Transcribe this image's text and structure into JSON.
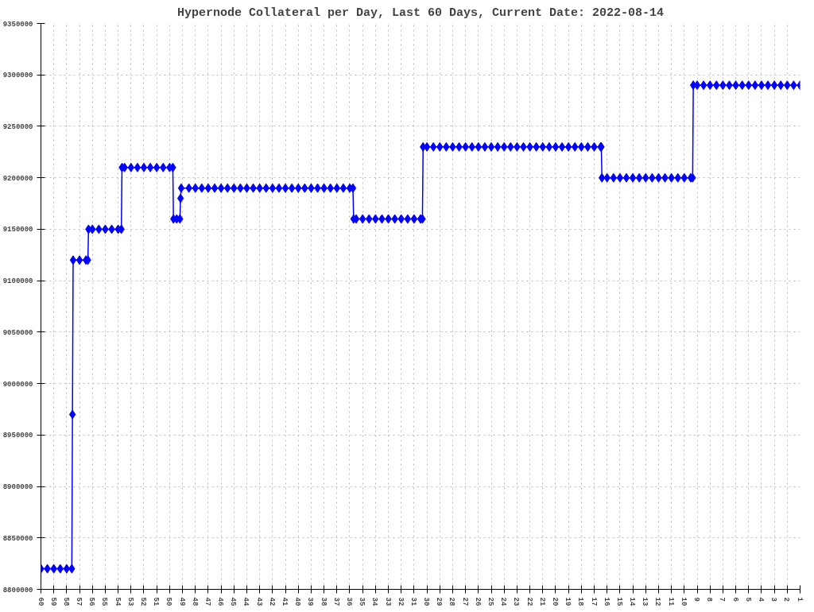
{
  "chart_data": {
    "type": "line",
    "title": "Hypernode Collateral per Day, Last 60 Days, Current Date: 2022-08-14",
    "x": [
      60,
      59.5,
      59,
      58.5,
      58,
      57.6,
      57.55,
      57.5,
      57,
      56.5,
      56.35,
      56.3,
      56,
      55.5,
      55,
      54.5,
      54,
      53.75,
      53.7,
      53.5,
      53,
      52.5,
      52,
      51.5,
      51,
      50.5,
      50,
      49.75,
      49.7,
      49.45,
      49.2,
      49.15,
      49.1,
      48.5,
      48,
      47.5,
      47,
      46.5,
      46,
      45.5,
      45,
      44.5,
      44,
      43.5,
      43,
      42.5,
      42,
      41.5,
      41,
      40.5,
      40,
      39.5,
      39,
      38.5,
      38,
      37.5,
      37,
      36.5,
      36,
      35.75,
      35.7,
      35.5,
      35,
      34.5,
      34,
      33.5,
      33,
      32.5,
      32,
      31.5,
      31,
      30.5,
      30.35,
      30.3,
      30,
      29.5,
      29,
      28.5,
      28,
      27.5,
      27,
      26.5,
      26,
      25.5,
      25,
      24.5,
      24,
      23.5,
      23,
      22.5,
      22,
      21.5,
      21,
      20.5,
      20,
      19.5,
      19,
      18.5,
      18,
      17.5,
      17,
      16.5,
      16.45,
      16.4,
      16,
      15.5,
      15,
      14.5,
      14,
      13.5,
      13,
      12.5,
      12,
      11.5,
      11,
      10.5,
      10,
      9.5,
      9.35,
      9.3,
      9,
      8.5,
      8,
      7.5,
      7,
      6.5,
      6,
      5.5,
      5,
      4.5,
      4,
      3.5,
      3,
      2.5,
      2,
      1.5,
      1
    ],
    "series": [
      {
        "color": "#0000ff",
        "values": [
          8820000,
          8820000,
          8820000,
          8820000,
          8820000,
          8820000,
          8970000,
          9120000,
          9120000,
          9120000,
          9120000,
          9150000,
          9150000,
          9150000,
          9150000,
          9150000,
          9150000,
          9150000,
          9210000,
          9210000,
          9210000,
          9210000,
          9210000,
          9210000,
          9210000,
          9210000,
          9210000,
          9210000,
          9160000,
          9160000,
          9160000,
          9180000,
          9190000,
          9190000,
          9190000,
          9190000,
          9190000,
          9190000,
          9190000,
          9190000,
          9190000,
          9190000,
          9190000,
          9190000,
          9190000,
          9190000,
          9190000,
          9190000,
          9190000,
          9190000,
          9190000,
          9190000,
          9190000,
          9190000,
          9190000,
          9190000,
          9190000,
          9190000,
          9190000,
          9190000,
          9160000,
          9160000,
          9160000,
          9160000,
          9160000,
          9160000,
          9160000,
          9160000,
          9160000,
          9160000,
          9160000,
          9160000,
          9160000,
          9230000,
          9230000,
          9230000,
          9230000,
          9230000,
          9230000,
          9230000,
          9230000,
          9230000,
          9230000,
          9230000,
          9230000,
          9230000,
          9230000,
          9230000,
          9230000,
          9230000,
          9230000,
          9230000,
          9230000,
          9230000,
          9230000,
          9230000,
          9230000,
          9230000,
          9230000,
          9230000,
          9230000,
          9230000,
          9230000,
          9200000,
          9200000,
          9200000,
          9200000,
          9200000,
          9200000,
          9200000,
          9200000,
          9200000,
          9200000,
          9200000,
          9200000,
          9200000,
          9200000,
          9200000,
          9200000,
          9290000,
          9290000,
          9290000,
          9290000,
          9290000,
          9290000,
          9290000,
          9290000,
          9290000,
          9290000,
          9290000,
          9290000,
          9290000,
          9290000,
          9290000,
          9290000,
          9290000,
          9290000
        ]
      }
    ],
    "xlim": [
      60,
      1
    ],
    "xticks": [
      60,
      59,
      58,
      57,
      56,
      55,
      54,
      53,
      52,
      51,
      50,
      49,
      48,
      47,
      46,
      45,
      44,
      43,
      42,
      41,
      40,
      39,
      38,
      37,
      36,
      35,
      34,
      33,
      32,
      31,
      30,
      29,
      28,
      27,
      26,
      25,
      24,
      23,
      22,
      21,
      20,
      19,
      18,
      17,
      16,
      15,
      14,
      13,
      12,
      11,
      10,
      9,
      8,
      7,
      6,
      5,
      4,
      3,
      2,
      1
    ],
    "ylim": [
      8800000,
      9350000
    ],
    "yticks": [
      8800000,
      8850000,
      8900000,
      8950000,
      9000000,
      9050000,
      9100000,
      9150000,
      9200000,
      9250000,
      9300000,
      9350000
    ],
    "grid": true,
    "marker": "diamond",
    "line_style": "solid"
  }
}
